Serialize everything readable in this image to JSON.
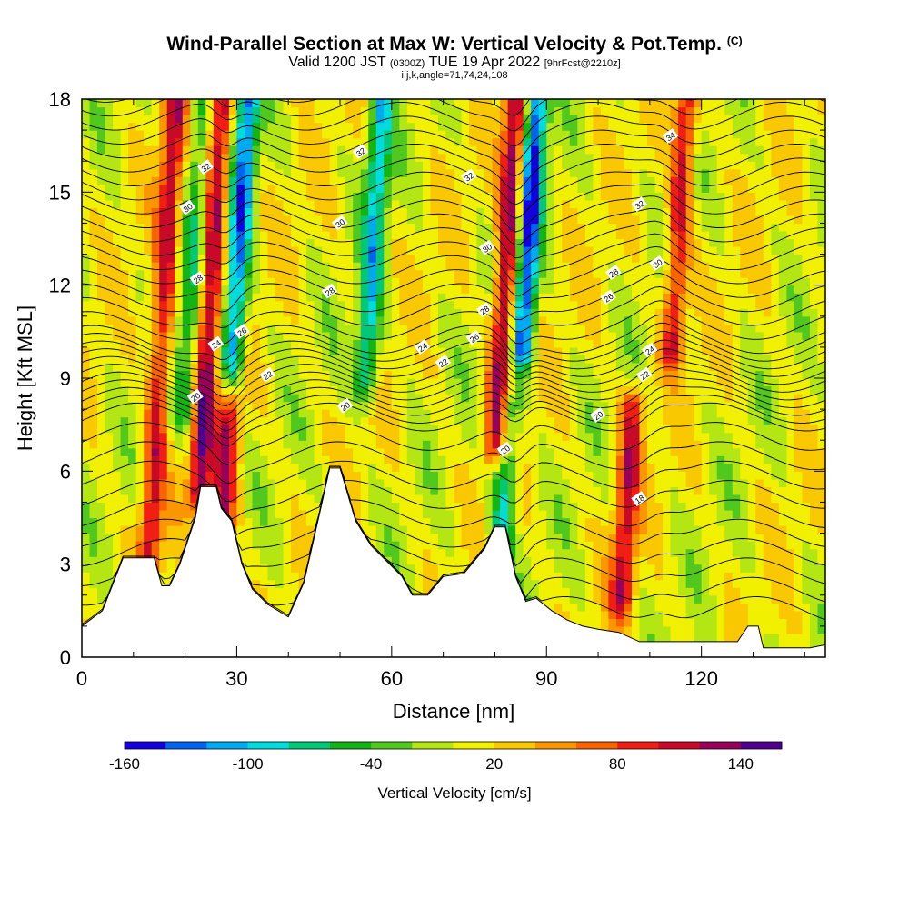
{
  "title": {
    "main": "Wind-Parallel Section at Max W: Vertical Velocity & Pot.Temp.",
    "copyright": "(C)",
    "valid_prefix": "Valid 1200 JST",
    "valid_utc": "(0300Z)",
    "valid_date": "TUE 19 Apr 2022",
    "valid_fcst": "[9hrFcst@2210z]",
    "params": "i,j,k,angle=71,74,24,108"
  },
  "colorbar": {
    "label": "Vertical Velocity [cm/s]",
    "tick_labels": [
      "-160",
      "-100",
      "-40",
      "20",
      "80",
      "140"
    ],
    "colors": [
      "#1400dc",
      "#0064f0",
      "#00aaf0",
      "#00dcdc",
      "#00c878",
      "#14b414",
      "#50c81e",
      "#b4e614",
      "#f0f000",
      "#fac800",
      "#fa9600",
      "#fa6400",
      "#f01e14",
      "#c80a28",
      "#96005a",
      "#50008c"
    ]
  },
  "chart_data": {
    "type": "heatmap",
    "xlabel": "Distance [nm]",
    "ylabel": "Height [Kft MSL]",
    "xlim": [
      0,
      144
    ],
    "ylim": [
      0,
      18
    ],
    "x_ticks": [
      0,
      30,
      60,
      90,
      120
    ],
    "y_ticks": [
      0,
      3,
      6,
      9,
      12,
      15,
      18
    ],
    "color_scale": {
      "variable": "vertical velocity",
      "unit": "cm/s",
      "min": -160,
      "max": 160,
      "step": 20
    },
    "updrafts": [
      {
        "x": 15,
        "zmin": 2.3,
        "zmax": 18,
        "max_w": 100
      },
      {
        "x": 24,
        "zmin": 5.5,
        "zmax": 18,
        "max_w": 120
      },
      {
        "x": 29,
        "zmin": 4.5,
        "zmax": 8.5,
        "max_w": 110
      },
      {
        "x": 81,
        "zmin": 7,
        "zmax": 18,
        "max_w": 130
      },
      {
        "x": 107,
        "zmin": 2,
        "zmax": 8,
        "max_w": 100
      },
      {
        "x": 114,
        "zmin": 10,
        "zmax": 18,
        "max_w": 100
      }
    ],
    "downdrafts": [
      {
        "x": 20,
        "zmin": 8,
        "zmax": 18,
        "min_w": -60
      },
      {
        "x": 29,
        "zmin": 9,
        "zmax": 18,
        "min_w": -130
      },
      {
        "x": 55,
        "zmin": 9,
        "zmax": 18,
        "min_w": -100
      },
      {
        "x": 83,
        "zmin": 3.5,
        "zmax": 8,
        "min_w": -90
      },
      {
        "x": 85,
        "zmin": 10,
        "zmax": 18,
        "min_w": -150
      }
    ],
    "terrain_profile": [
      [
        0,
        1.0
      ],
      [
        4,
        1.5
      ],
      [
        8,
        3.2
      ],
      [
        14,
        3.2
      ],
      [
        15.5,
        2.3
      ],
      [
        17,
        2.3
      ],
      [
        19,
        3.0
      ],
      [
        22,
        4.5
      ],
      [
        23,
        5.5
      ],
      [
        26,
        5.5
      ],
      [
        27,
        4.8
      ],
      [
        29,
        4.4
      ],
      [
        31,
        3.0
      ],
      [
        33,
        2.2
      ],
      [
        36,
        1.7
      ],
      [
        38,
        1.5
      ],
      [
        40,
        1.3
      ],
      [
        43,
        2.4
      ],
      [
        46,
        4.6
      ],
      [
        48,
        6.1
      ],
      [
        50,
        6.1
      ],
      [
        53,
        4.4
      ],
      [
        56,
        3.6
      ],
      [
        59,
        3.1
      ],
      [
        62,
        2.6
      ],
      [
        64,
        2.0
      ],
      [
        67,
        2.0
      ],
      [
        70,
        2.6
      ],
      [
        74,
        2.7
      ],
      [
        78,
        3.5
      ],
      [
        80,
        4.2
      ],
      [
        82,
        4.2
      ],
      [
        84,
        2.6
      ],
      [
        86,
        1.8
      ],
      [
        88,
        1.9
      ],
      [
        91,
        1.5
      ],
      [
        94,
        1.2
      ],
      [
        97,
        1.0
      ],
      [
        100,
        0.9
      ],
      [
        104,
        0.8
      ],
      [
        108,
        0.5
      ],
      [
        112,
        0.5
      ],
      [
        117,
        0.5
      ],
      [
        122,
        0.5
      ],
      [
        127,
        0.5
      ],
      [
        129,
        1.0
      ],
      [
        131,
        1.0
      ],
      [
        132,
        0.3
      ],
      [
        137,
        0.3
      ],
      [
        141,
        0.3
      ],
      [
        144,
        0.4
      ]
    ],
    "theta_labels": [
      {
        "value": "32",
        "x": 24,
        "z": 15.8
      },
      {
        "value": "30",
        "x": 20.5,
        "z": 14.5
      },
      {
        "value": "28",
        "x": 22.5,
        "z": 12.2
      },
      {
        "value": "26",
        "x": 31,
        "z": 10.5
      },
      {
        "value": "24",
        "x": 26,
        "z": 10.1
      },
      {
        "value": "22",
        "x": 36,
        "z": 9.1
      },
      {
        "value": "20",
        "x": 22,
        "z": 8.4
      },
      {
        "value": "32",
        "x": 54,
        "z": 16.3
      },
      {
        "value": "30",
        "x": 50,
        "z": 14.0
      },
      {
        "value": "28",
        "x": 48,
        "z": 11.8
      },
      {
        "value": "20",
        "x": 51,
        "z": 8.1
      },
      {
        "value": "24",
        "x": 66,
        "z": 10.0
      },
      {
        "value": "22",
        "x": 70,
        "z": 9.5
      },
      {
        "value": "26",
        "x": 76,
        "z": 10.3
      },
      {
        "value": "32",
        "x": 75,
        "z": 15.5
      },
      {
        "value": "30",
        "x": 78.5,
        "z": 13.2
      },
      {
        "value": "28",
        "x": 78,
        "z": 11.2
      },
      {
        "value": "20",
        "x": 82,
        "z": 6.7
      },
      {
        "value": "34",
        "x": 114,
        "z": 16.8
      },
      {
        "value": "32",
        "x": 108,
        "z": 14.6
      },
      {
        "value": "30",
        "x": 111.5,
        "z": 12.7
      },
      {
        "value": "28",
        "x": 103,
        "z": 12.4
      },
      {
        "value": "26",
        "x": 102,
        "z": 11.6
      },
      {
        "value": "24",
        "x": 110,
        "z": 9.9
      },
      {
        "value": "22",
        "x": 109,
        "z": 9.1
      },
      {
        "value": "20",
        "x": 100,
        "z": 7.8
      },
      {
        "value": "18",
        "x": 108,
        "z": 5.1
      }
    ]
  }
}
